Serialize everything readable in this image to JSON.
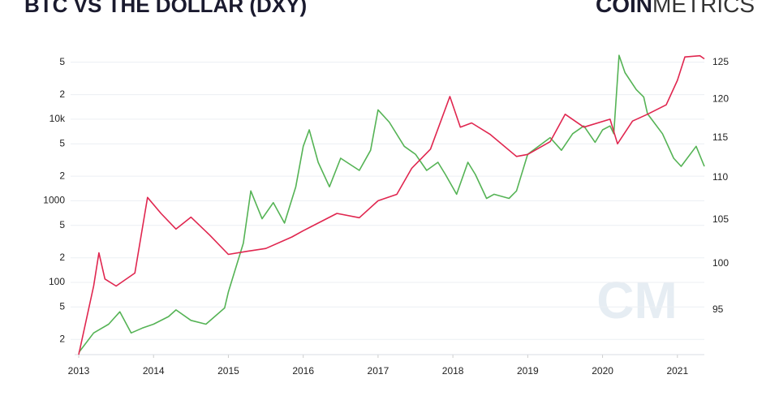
{
  "chart_data": {
    "type": "line",
    "title": "BTC VS THE DOLLAR (DXY)",
    "logo": {
      "bold": "COIN",
      "light": "METRICS"
    },
    "watermark": "CM",
    "xlim": [
      2013,
      2021.36
    ],
    "xticks": [
      2013,
      2014,
      2015,
      2016,
      2017,
      2018,
      2019,
      2020,
      2021
    ],
    "log_y": true,
    "ylim": [
      13,
      70000
    ],
    "yticks": [
      {
        "value": 20,
        "label": "2"
      },
      {
        "value": 50,
        "label": "5"
      },
      100,
      {
        "value": 200,
        "label": "2"
      },
      {
        "value": 500,
        "label": "5"
      },
      1000,
      {
        "value": 2000,
        "label": "2"
      },
      {
        "value": 5000,
        "label": "5"
      },
      {
        "value": 10000,
        "label": "10k"
      },
      {
        "value": 20000,
        "label": "2"
      },
      {
        "value": 50000,
        "label": "5"
      }
    ],
    "log_y2": true,
    "y2lim": [
      90.4,
      126.7
    ],
    "y2ticks": [
      95,
      100,
      105,
      110,
      115,
      120,
      125
    ],
    "grid": true,
    "series": [
      {
        "color": "#e0264f",
        "axis": "y",
        "x": [
          2013.0,
          2013.2,
          2013.27,
          2013.35,
          2013.5,
          2013.75,
          2013.92,
          2014.1,
          2014.3,
          2014.5,
          2014.75,
          2015.0,
          2015.25,
          2015.5,
          2015.85,
          2016.0,
          2016.45,
          2016.75,
          2017.0,
          2017.25,
          2017.45,
          2017.7,
          2017.96,
          2018.1,
          2018.25,
          2018.5,
          2018.85,
          2019.0,
          2019.3,
          2019.5,
          2019.75,
          2020.1,
          2020.2,
          2020.4,
          2020.6,
          2020.85,
          2021.0,
          2021.1,
          2021.3,
          2021.36
        ],
        "values": [
          13,
          90,
          230,
          110,
          90,
          130,
          1100,
          700,
          450,
          630,
          380,
          220,
          240,
          260,
          360,
          430,
          700,
          620,
          1000,
          1200,
          2500,
          4300,
          19000,
          8000,
          9000,
          6500,
          3500,
          3700,
          5300,
          11500,
          8000,
          10000,
          5000,
          9500,
          11500,
          15000,
          30000,
          58000,
          60000,
          55000
        ]
      },
      {
        "color": "#55b355",
        "axis": "y2",
        "x": [
          2013.0,
          2013.2,
          2013.4,
          2013.55,
          2013.7,
          2013.85,
          2014.0,
          2014.2,
          2014.3,
          2014.5,
          2014.7,
          2014.95,
          2015.0,
          2015.2,
          2015.3,
          2015.45,
          2015.6,
          2015.75,
          2015.9,
          2016.0,
          2016.08,
          2016.2,
          2016.35,
          2016.5,
          2016.75,
          2016.9,
          2017.0,
          2017.15,
          2017.35,
          2017.5,
          2017.65,
          2017.8,
          2017.9,
          2018.05,
          2018.2,
          2018.3,
          2018.45,
          2018.55,
          2018.75,
          2018.85,
          2019.0,
          2019.3,
          2019.45,
          2019.6,
          2019.75,
          2019.9,
          2020.0,
          2020.1,
          2020.15,
          2020.22,
          2020.3,
          2020.45,
          2020.55,
          2020.6,
          2020.8,
          2020.95,
          2021.05,
          2021.25,
          2021.36
        ],
        "values": [
          90.6,
          92.6,
          93.5,
          94.8,
          92.6,
          93.1,
          93.5,
          94.3,
          95.0,
          93.9,
          93.5,
          95.2,
          96.9,
          102.3,
          108.4,
          105.1,
          107.0,
          104.6,
          108.9,
          113.9,
          116.0,
          111.9,
          108.9,
          112.4,
          110.9,
          113.4,
          118.6,
          117.0,
          113.9,
          112.9,
          110.9,
          111.9,
          110.4,
          108.0,
          111.9,
          110.4,
          107.5,
          108.0,
          107.5,
          108.4,
          112.9,
          115.0,
          113.4,
          115.5,
          116.5,
          114.4,
          116.0,
          116.5,
          115.5,
          126.0,
          123.6,
          121.3,
          120.3,
          118.1,
          115.5,
          112.4,
          111.4,
          113.9,
          111.4
        ]
      }
    ]
  }
}
